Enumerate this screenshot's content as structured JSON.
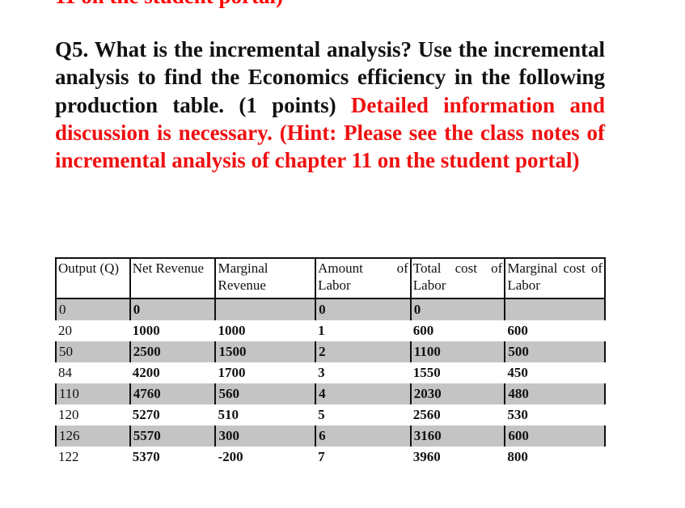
{
  "cut_top_text": "11 on the student portal)",
  "question": {
    "black": "Q5. What is the incremental analysis? Use the incremental analysis to find the Economics efficiency in the following production table. (1 points) ",
    "red": "Detailed information and discussion is necessary. (Hint: Please see the class notes of incremental analysis of chapter 11 on the student portal)"
  },
  "table": {
    "headers": [
      "Output (Q)",
      "Net Revenue",
      "Marginal Revenue",
      "Amount of Labor",
      "Total cost of Labor",
      "Marginal cost of Labor"
    ],
    "rows": [
      [
        "0",
        "0",
        "",
        "0",
        "0",
        ""
      ],
      [
        "20",
        "1000",
        "1000",
        "1",
        "600",
        "600"
      ],
      [
        "50",
        "2500",
        "1500",
        "2",
        "1100",
        "500"
      ],
      [
        "84",
        "4200",
        "1700",
        "3",
        "1550",
        "450"
      ],
      [
        "110",
        "4760",
        "560",
        "4",
        "2030",
        "480"
      ],
      [
        "120",
        "5270",
        "510",
        "5",
        "2560",
        "530"
      ],
      [
        "126",
        "5570",
        "300",
        "6",
        "3160",
        "600"
      ],
      [
        "122",
        "5370",
        "-200",
        "7",
        "3960",
        "800"
      ]
    ]
  },
  "colors": {
    "highlight_text": "#f01010",
    "row_shade": "#c4c4c4"
  }
}
